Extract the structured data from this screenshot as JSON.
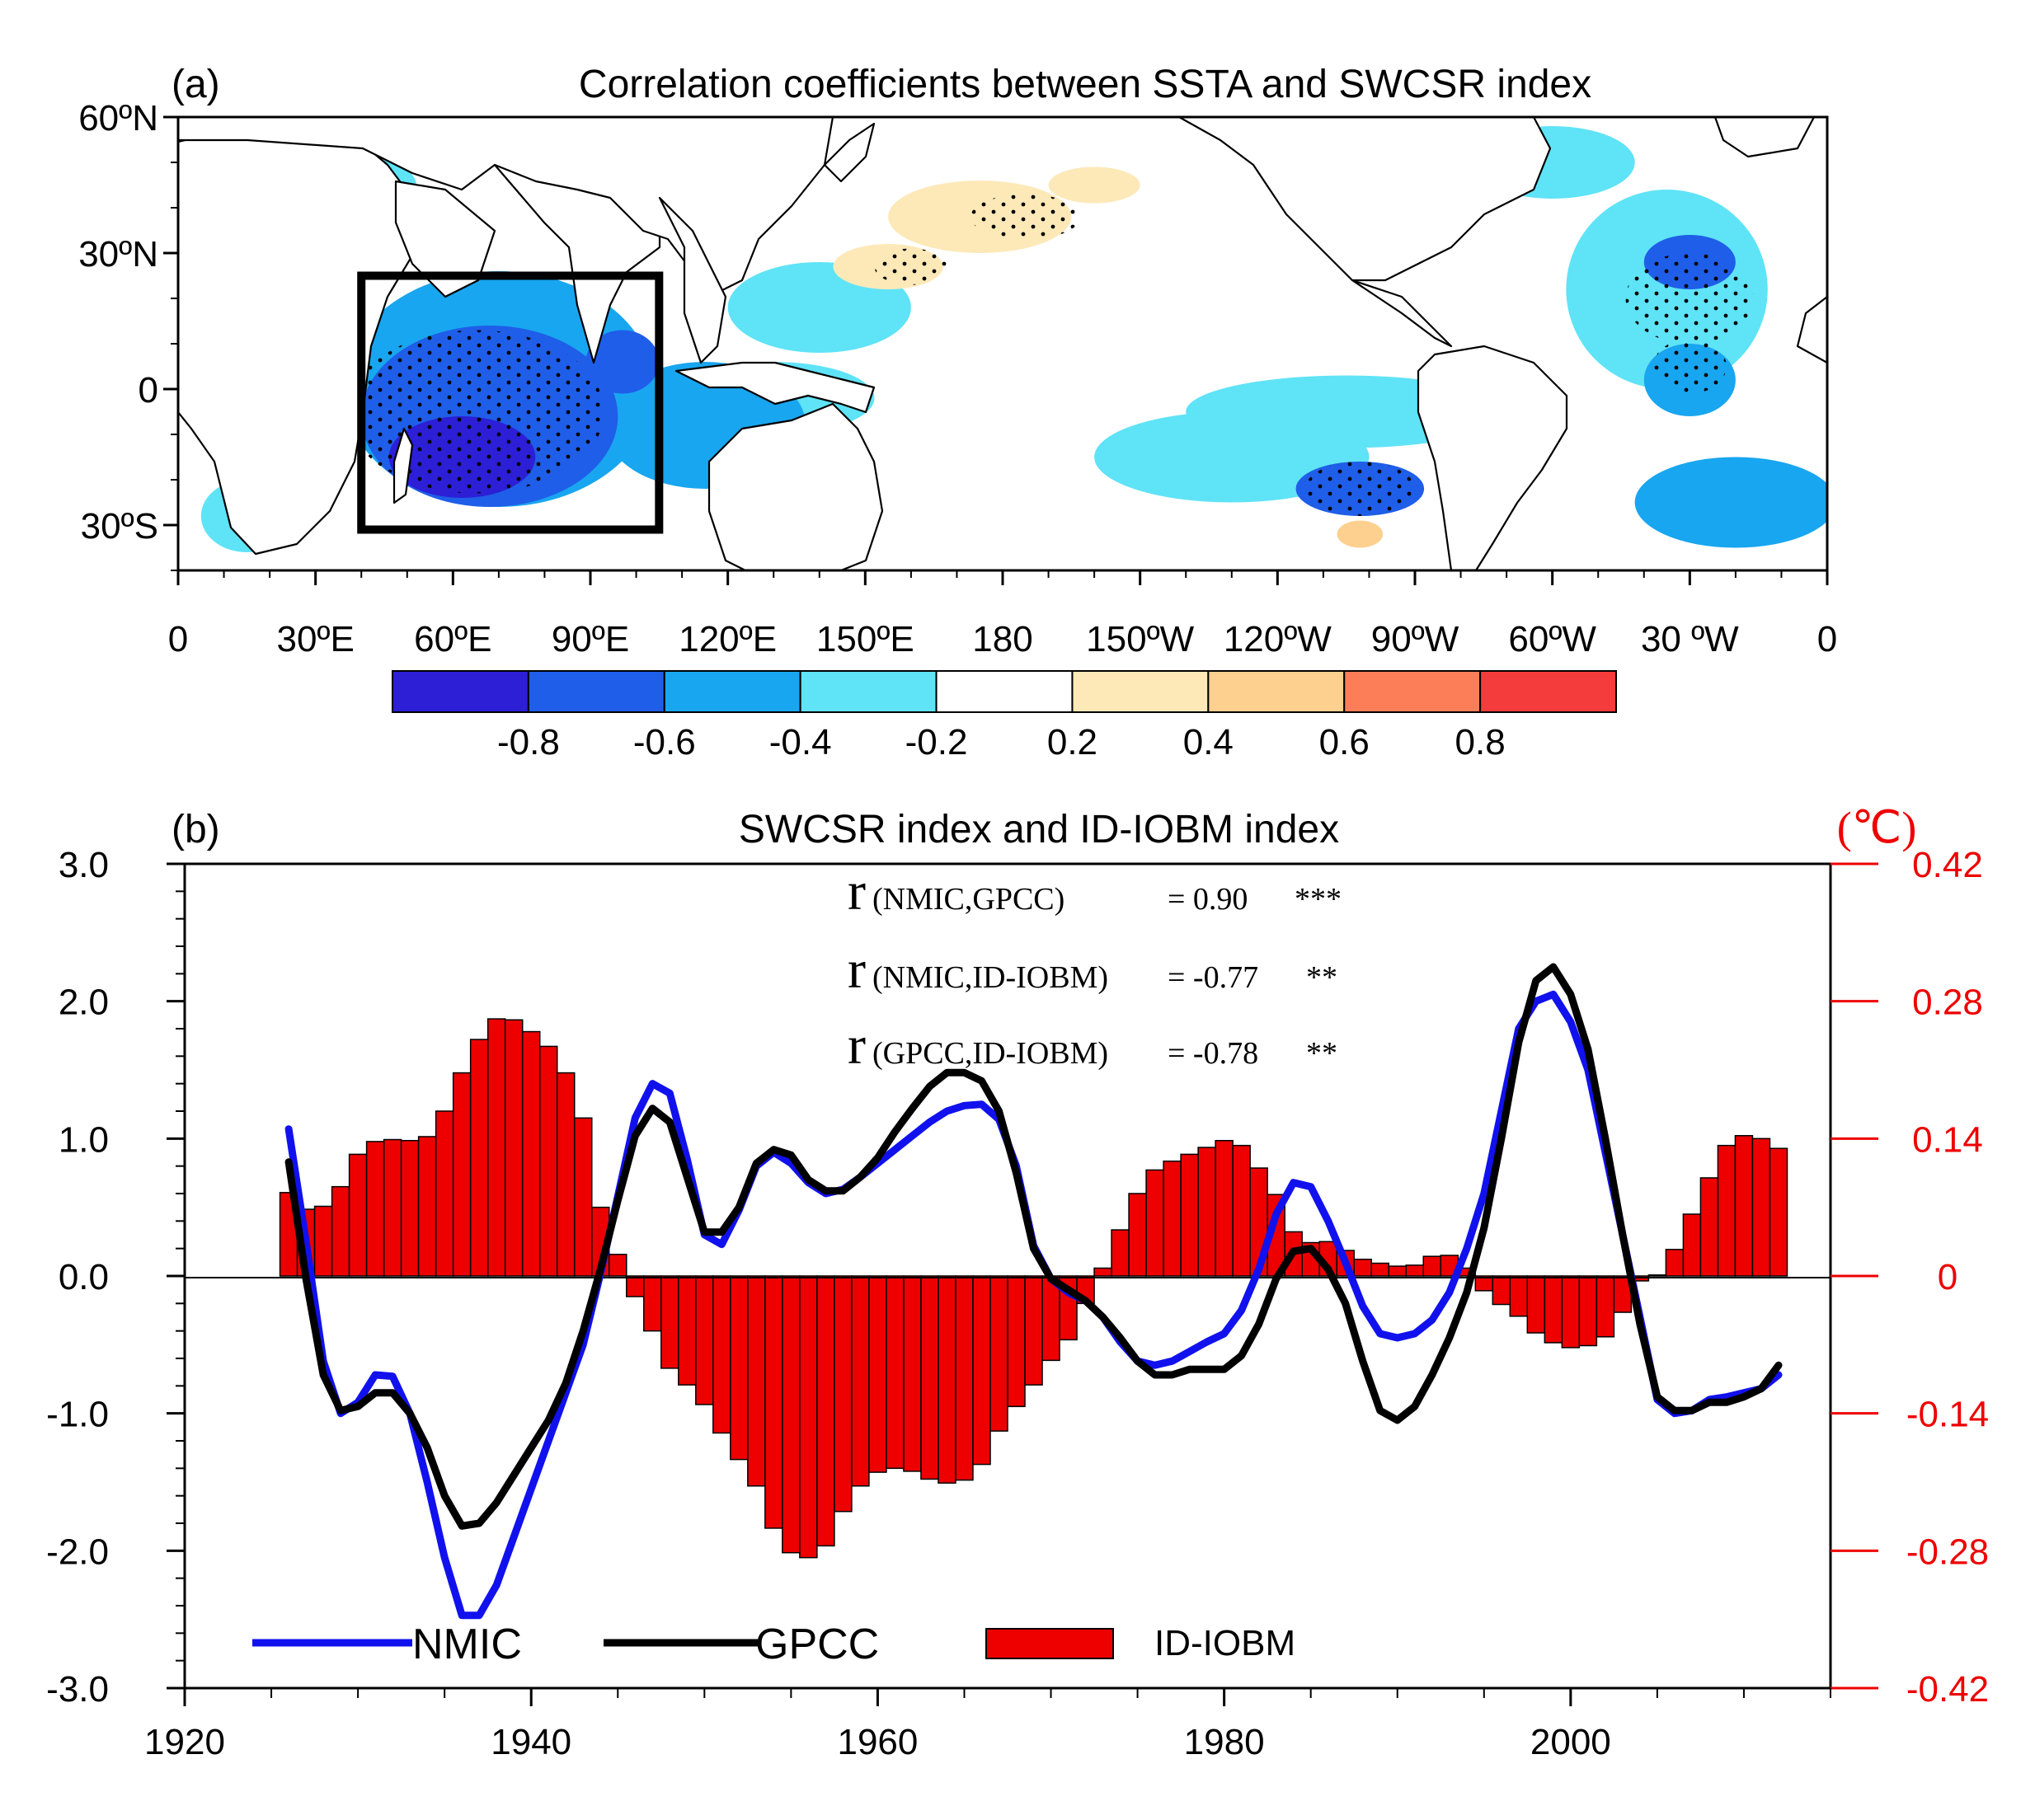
{
  "colors": {
    "nmic": "#1111ee",
    "gpcc": "#000000",
    "bars": "#ee0000",
    "right_axis": "#ee0000",
    "levels": [
      "#2c1fd6",
      "#1f5ee8",
      "#18a6f0",
      "#5fe3f7",
      "#ffffff",
      "#fde9b8",
      "#fdd08f",
      "#fb7e58",
      "#f53c3c"
    ]
  },
  "chart_data": [
    {
      "type": "heatmap",
      "panel_label": "(a)",
      "title": "Correlation coefficients between SSTA and SWCSR index",
      "lon_tick_labels": [
        "0",
        "30ºE",
        "60ºE",
        "90ºE",
        "120ºE",
        "150ºE",
        "180",
        "150ºW",
        "120ºW",
        "90ºW",
        "60ºW",
        "30 ºW",
        "0"
      ],
      "lon_ticks": [
        0,
        30,
        60,
        90,
        120,
        150,
        180,
        210,
        240,
        270,
        300,
        330,
        360
      ],
      "lat_tick_labels": [
        "60ºN",
        "30ºN",
        "0",
        "30ºS"
      ],
      "lat_ticks": [
        60,
        30,
        0,
        -30
      ],
      "lon_range": [
        0,
        360
      ],
      "lat_range": [
        -40,
        60
      ],
      "colorbar_labels": [
        "-0.8",
        "-0.6",
        "-0.4",
        "-0.2",
        "0.2",
        "0.4",
        "0.6",
        "0.8"
      ],
      "box_region": {
        "lon": [
          40,
          105
        ],
        "lat": [
          -31,
          25
        ]
      },
      "regions": [
        {
          "lon": 70,
          "lat": 0,
          "rx": 34,
          "ry": 26,
          "level": 2
        },
        {
          "lon": 68,
          "lat": -6,
          "rx": 28,
          "ry": 20,
          "level": 1
        },
        {
          "lon": 62,
          "lat": -15,
          "rx": 16,
          "ry": 9,
          "level": 0
        },
        {
          "lon": 97,
          "lat": 6,
          "rx": 8,
          "ry": 7,
          "level": 1
        },
        {
          "lon": 90,
          "lat": -10,
          "rx": 9,
          "ry": 5,
          "level": 4
        },
        {
          "lon": 115,
          "lat": -8,
          "rx": 22,
          "ry": 14,
          "level": 2
        },
        {
          "lon": 130,
          "lat": -2,
          "rx": 22,
          "ry": 8,
          "level": 3
        },
        {
          "lon": 140,
          "lat": 18,
          "rx": 20,
          "ry": 10,
          "level": 3
        },
        {
          "lon": 175,
          "lat": 38,
          "rx": 20,
          "ry": 8,
          "level": 5
        },
        {
          "lon": 155,
          "lat": 27,
          "rx": 12,
          "ry": 5,
          "level": 5
        },
        {
          "lon": 230,
          "lat": -15,
          "rx": 30,
          "ry": 10,
          "level": 3
        },
        {
          "lon": 258,
          "lat": -22,
          "rx": 14,
          "ry": 6,
          "level": 1
        },
        {
          "lon": 255,
          "lat": -5,
          "rx": 35,
          "ry": 8,
          "level": 3
        },
        {
          "lon": 325,
          "lat": 22,
          "rx": 22,
          "ry": 22,
          "level": 3
        },
        {
          "lon": 330,
          "lat": 28,
          "rx": 10,
          "ry": 6,
          "level": 1
        },
        {
          "lon": 330,
          "lat": 2,
          "rx": 10,
          "ry": 8,
          "level": 2
        },
        {
          "lon": 340,
          "lat": -25,
          "rx": 22,
          "ry": 10,
          "level": 2
        },
        {
          "lon": 300,
          "lat": 50,
          "rx": 18,
          "ry": 8,
          "level": 3
        },
        {
          "lon": 15,
          "lat": -28,
          "rx": 10,
          "ry": 8,
          "level": 3
        },
        {
          "lon": 40,
          "lat": 45,
          "rx": 12,
          "ry": 6,
          "level": 3
        },
        {
          "lon": 200,
          "lat": 45,
          "rx": 10,
          "ry": 4,
          "level": 5
        },
        {
          "lon": 258,
          "lat": -32,
          "rx": 5,
          "ry": 3,
          "level": 6
        }
      ]
    },
    {
      "type": "bar",
      "panel_label": "(b)",
      "title": "SWCSR index and ID-IOBM index",
      "right_unit": "(℃)",
      "xlim": [
        1920,
        2015
      ],
      "x_ticks": [
        1920,
        1940,
        1960,
        1980,
        2000
      ],
      "ylim_left": [
        -3.0,
        3.0
      ],
      "y_left_ticks": [
        "-3.0",
        "-2.0",
        "-1.0",
        "0.0",
        "1.0",
        "2.0",
        "3.0"
      ],
      "ylim_right": [
        -0.42,
        0.42
      ],
      "y_right_ticks": [
        "-0.42",
        "-0.28",
        "-0.14",
        "0",
        "0.14",
        "0.28",
        "0.42"
      ],
      "years": [
        1926,
        1927,
        1928,
        1929,
        1930,
        1931,
        1932,
        1933,
        1934,
        1935,
        1936,
        1937,
        1938,
        1939,
        1940,
        1941,
        1942,
        1943,
        1944,
        1945,
        1946,
        1947,
        1948,
        1949,
        1950,
        1951,
        1952,
        1953,
        1954,
        1955,
        1956,
        1957,
        1958,
        1959,
        1960,
        1961,
        1962,
        1963,
        1964,
        1965,
        1966,
        1967,
        1968,
        1969,
        1970,
        1971,
        1972,
        1973,
        1974,
        1975,
        1976,
        1977,
        1978,
        1979,
        1980,
        1981,
        1982,
        1983,
        1984,
        1985,
        1986,
        1987,
        1988,
        1989,
        1990,
        1991,
        1992,
        1993,
        1994,
        1995,
        1996,
        1997,
        1998,
        1999,
        2000,
        2001,
        2002,
        2003,
        2004,
        2005,
        2006,
        2007,
        2008,
        2009,
        2010,
        2011,
        2012
      ],
      "series": [
        {
          "name": "ID-IOBM",
          "axis": "right",
          "values": [
            0.085,
            0.068,
            0.071,
            0.091,
            0.124,
            0.137,
            0.139,
            0.138,
            0.142,
            0.168,
            0.207,
            0.241,
            0.262,
            0.261,
            0.249,
            0.234,
            0.207,
            0.161,
            0.07,
            0.022,
            -0.021,
            -0.056,
            -0.094,
            -0.111,
            -0.131,
            -0.16,
            -0.187,
            -0.214,
            -0.257,
            -0.282,
            -0.287,
            -0.275,
            -0.24,
            -0.214,
            -0.2,
            -0.196,
            -0.199,
            -0.207,
            -0.211,
            -0.208,
            -0.192,
            -0.158,
            -0.133,
            -0.111,
            -0.086,
            -0.065,
            -0.028,
            0.008,
            0.047,
            0.084,
            0.108,
            0.117,
            0.124,
            0.131,
            0.138,
            0.133,
            0.11,
            0.083,
            0.045,
            0.034,
            0.035,
            0.026,
            0.017,
            0.013,
            0.01,
            0.011,
            0.02,
            0.021,
            0.008,
            -0.015,
            -0.029,
            -0.041,
            -0.058,
            -0.068,
            -0.073,
            -0.071,
            -0.062,
            -0.037,
            -0.005,
            0.001,
            0.027,
            0.063,
            0.1,
            0.133,
            0.143,
            0.14,
            0.13
          ]
        },
        {
          "name": "NMIC",
          "axis": "left",
          "values": [
            1.07,
            0.25,
            -0.62,
            -1.0,
            -0.92,
            -0.72,
            -0.73,
            -1.0,
            -1.5,
            -2.05,
            -2.47,
            -2.47,
            -2.25,
            -1.9,
            -1.55,
            -1.2,
            -0.85,
            -0.5,
            0.02,
            0.58,
            1.15,
            1.4,
            1.33,
            0.85,
            0.3,
            0.23,
            0.48,
            0.8,
            0.9,
            0.82,
            0.68,
            0.6,
            0.63,
            0.72,
            0.82,
            0.92,
            1.02,
            1.12,
            1.2,
            1.24,
            1.25,
            1.14,
            0.8,
            0.22,
            -0.02,
            -0.12,
            -0.18,
            -0.3,
            -0.48,
            -0.62,
            -0.65,
            -0.62,
            -0.55,
            -0.48,
            -0.42,
            -0.25,
            0.05,
            0.45,
            0.68,
            0.65,
            0.4,
            0.1,
            -0.22,
            -0.42,
            -0.45,
            -0.42,
            -0.32,
            -0.12,
            0.2,
            0.6,
            1.2,
            1.8,
            2.0,
            2.05,
            1.85,
            1.5,
            0.9,
            0.3,
            -0.3,
            -0.9,
            -1.0,
            -0.98,
            -0.9,
            -0.88,
            -0.85,
            -0.82,
            -0.72
          ]
        },
        {
          "name": "GPCC",
          "axis": "left",
          "values": [
            0.83,
            -0.02,
            -0.72,
            -0.98,
            -0.95,
            -0.85,
            -0.85,
            -1.0,
            -1.25,
            -1.6,
            -1.82,
            -1.8,
            -1.65,
            -1.45,
            -1.25,
            -1.05,
            -0.78,
            -0.4,
            0.05,
            0.55,
            1.02,
            1.22,
            1.12,
            0.72,
            0.32,
            0.32,
            0.5,
            0.82,
            0.92,
            0.88,
            0.7,
            0.62,
            0.62,
            0.72,
            0.86,
            1.05,
            1.22,
            1.38,
            1.48,
            1.48,
            1.42,
            1.2,
            0.75,
            0.2,
            -0.02,
            -0.1,
            -0.18,
            -0.3,
            -0.45,
            -0.62,
            -0.72,
            -0.72,
            -0.68,
            -0.68,
            -0.68,
            -0.58,
            -0.35,
            -0.02,
            0.18,
            0.2,
            0.05,
            -0.2,
            -0.62,
            -0.98,
            -1.05,
            -0.95,
            -0.72,
            -0.45,
            -0.12,
            0.35,
            1.0,
            1.7,
            2.15,
            2.25,
            2.05,
            1.65,
            1.0,
            0.3,
            -0.35,
            -0.88,
            -0.98,
            -0.98,
            -0.92,
            -0.92,
            -0.88,
            -0.82,
            -0.65
          ]
        }
      ],
      "legend_position": "bottom-left",
      "annotation_lines": [
        {
          "r": "r",
          "sub": "(NMIC,GPCC)",
          "eq": "= 0.90",
          "sig": "***"
        },
        {
          "r": "r",
          "sub": "(NMIC,ID-IOBM)",
          "eq": "= -0.77",
          "sig": "**"
        },
        {
          "r": "r",
          "sub": "(GPCC,ID-IOBM)",
          "eq": "= -0.78",
          "sig": "**"
        }
      ]
    }
  ]
}
